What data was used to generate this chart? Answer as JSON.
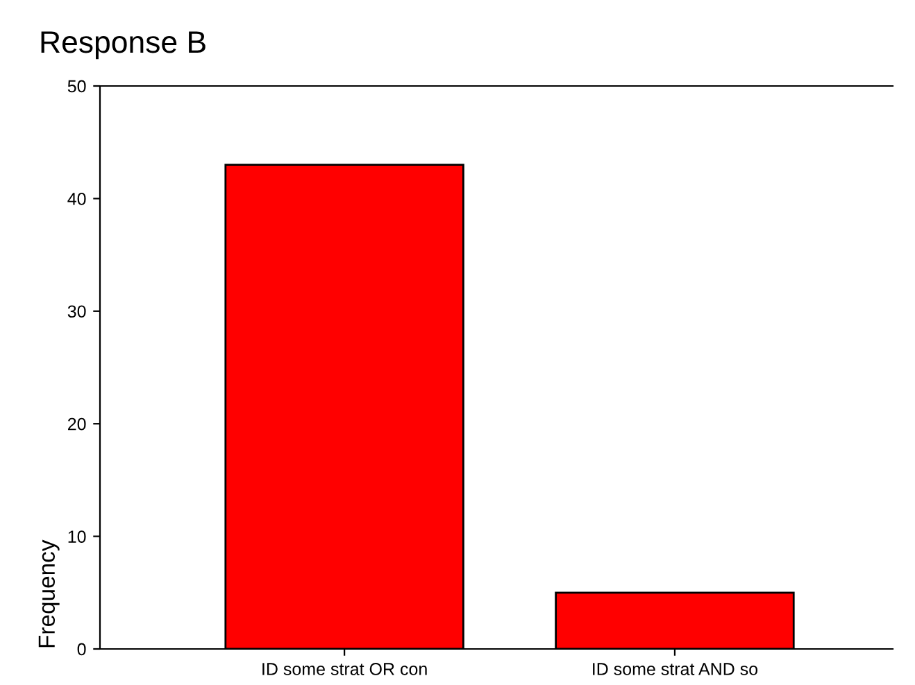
{
  "chart_data": {
    "type": "bar",
    "title": "Response B",
    "ylabel": "Frequency",
    "categories": [
      "ID some strat OR con",
      "ID some strat AND so"
    ],
    "values": [
      43,
      5
    ],
    "color": "#ff0000",
    "ylim": [
      0,
      50
    ],
    "yticks": [
      0,
      10,
      20,
      30,
      40,
      50
    ],
    "grid": false,
    "legend": false
  }
}
